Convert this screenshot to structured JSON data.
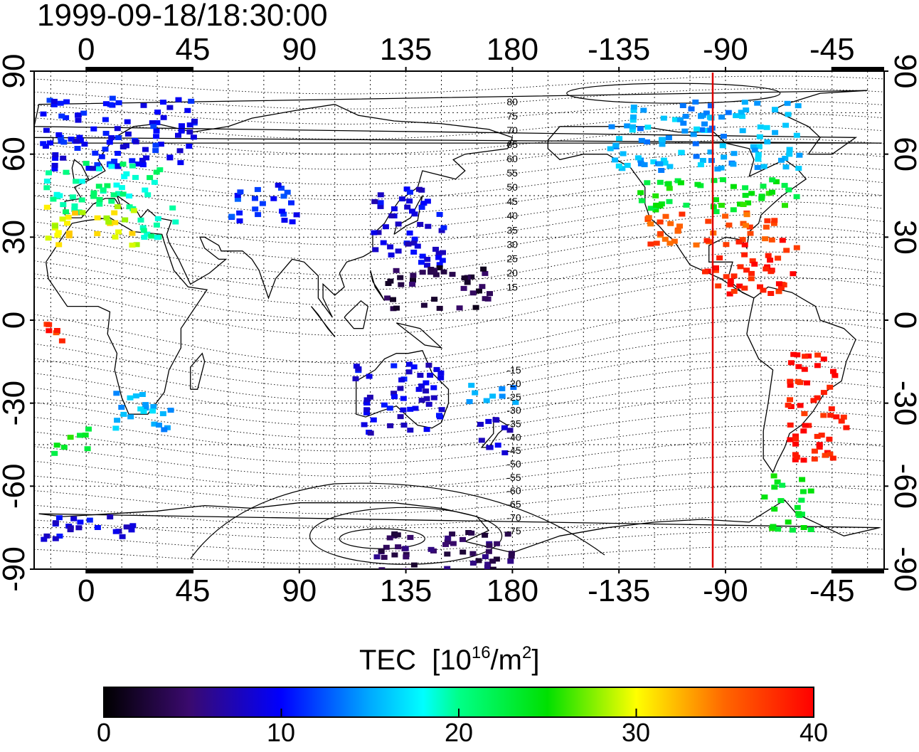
{
  "title": "1999-09-18/18:30:00",
  "map": {
    "x_tick_labels": [
      "0",
      "45",
      "90",
      "135",
      "180",
      "-135",
      "-90",
      "-45"
    ],
    "y_tick_labels": [
      "90",
      "60",
      "30",
      "0",
      "-30",
      "-60",
      "-90"
    ],
    "magnetic_latitude_labels_north": [
      "80",
      "75",
      "70",
      "65",
      "60",
      "55",
      "50",
      "45",
      "40",
      "35",
      "30",
      "25",
      "20",
      "15"
    ],
    "magnetic_latitude_labels_south": [
      "-15",
      "-20",
      "-25",
      "-30",
      "-35",
      "-40",
      "-45",
      "-50",
      "-55",
      "-60",
      "-65",
      "-70",
      "-75"
    ],
    "colors": {
      "marker_line": "#dd0000",
      "grid": "#000000"
    }
  },
  "chart_data": {
    "type": "heatmap",
    "quantity": "TEC",
    "unit": "10^16/m^2",
    "xlim": [
      -22,
      337
    ],
    "ylim": [
      -90,
      90
    ],
    "marker_longitude": -97,
    "colorbar": {
      "range": [
        0,
        40
      ],
      "ticks": [
        0,
        10,
        20,
        30,
        40
      ]
    },
    "regions": [
      {
        "lon_range": [
          -20,
          45
        ],
        "lat_range": [
          55,
          82
        ],
        "tec": 10
      },
      {
        "lon_range": [
          -18,
          30
        ],
        "lat_range": [
          40,
          58
        ],
        "tec": 20
      },
      {
        "lon_range": [
          -18,
          20
        ],
        "lat_range": [
          28,
          42
        ],
        "tec": 30
      },
      {
        "lon_range": [
          20,
          38
        ],
        "lat_range": [
          30,
          42
        ],
        "tec": 20
      },
      {
        "lon_range": [
          60,
          88
        ],
        "lat_range": [
          35,
          50
        ],
        "tec": 11
      },
      {
        "lon_range": [
          120,
          150
        ],
        "lat_range": [
          20,
          50
        ],
        "tec": 9
      },
      {
        "lon_range": [
          125,
          170
        ],
        "lat_range": [
          5,
          20
        ],
        "tec": 3
      },
      {
        "lon_range": [
          -128,
          -60
        ],
        "lat_range": [
          40,
          52
        ],
        "tec": 24
      },
      {
        "lon_range": [
          -125,
          -70
        ],
        "lat_range": [
          28,
          40
        ],
        "tec": 36
      },
      {
        "lon_range": [
          -100,
          -60
        ],
        "lat_range": [
          10,
          30
        ],
        "tec": 39
      },
      {
        "lon_range": [
          -140,
          -60
        ],
        "lat_range": [
          55,
          80
        ],
        "tec": 15
      },
      {
        "lon_range": [
          -65,
          -40
        ],
        "lat_range": [
          -50,
          -10
        ],
        "tec": 39
      },
      {
        "lon_range": [
          -75,
          -55
        ],
        "lat_range": [
          -75,
          -55
        ],
        "tec": 24
      },
      {
        "lon_range": [
          112,
          150
        ],
        "lat_range": [
          -40,
          -15
        ],
        "tec": 9
      },
      {
        "lon_range": [
          165,
          178
        ],
        "lat_range": [
          -50,
          -35
        ],
        "tec": 8
      },
      {
        "lon_range": [
          160,
          180
        ],
        "lat_range": [
          -30,
          -22
        ],
        "tec": 15
      },
      {
        "lon_range": [
          10,
          35
        ],
        "lat_range": [
          -40,
          -25
        ],
        "tec": 15
      },
      {
        "lon_range": [
          -18,
          -10
        ],
        "lat_range": [
          -10,
          0
        ],
        "tec": 38
      },
      {
        "lon_range": [
          -15,
          0
        ],
        "lat_range": [
          -48,
          -38
        ],
        "tec": 24
      },
      {
        "lon_range": [
          -20,
          20
        ],
        "lat_range": [
          -80,
          -70
        ],
        "tec": 9
      },
      {
        "lon_range": [
          120,
          180
        ],
        "lat_range": [
          -90,
          -75
        ],
        "tec": 4
      }
    ]
  },
  "colorbar": {
    "title": "TEC",
    "unit_prefix": "[10",
    "unit_exp": "16",
    "unit_mid": "/m",
    "unit_exp2": "2",
    "unit_suffix": "]",
    "tick_labels": [
      "0",
      "10",
      "20",
      "30",
      "40"
    ]
  }
}
